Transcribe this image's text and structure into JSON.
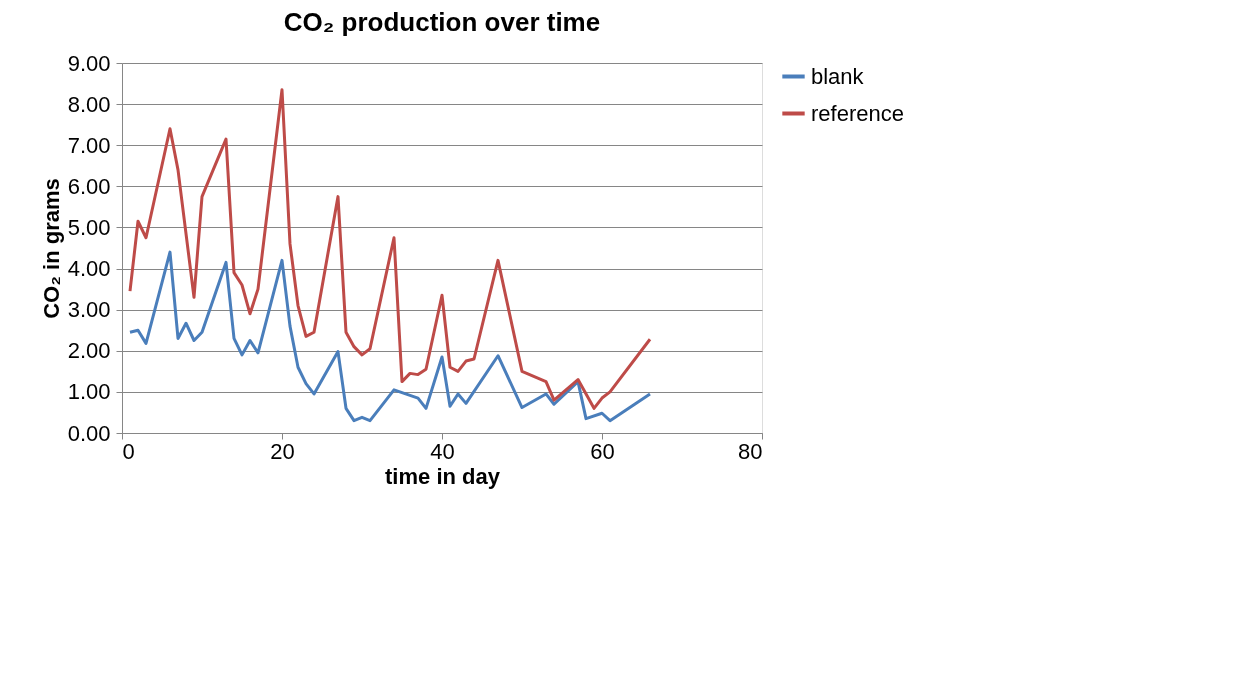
{
  "chart_data": {
    "type": "line",
    "title": "CO₂ production over time",
    "xlabel": "time in day",
    "ylabel": "CO₂ in grams",
    "xlim": [
      0,
      80
    ],
    "xticks": [
      0,
      20,
      40,
      60,
      80
    ],
    "ylim": [
      0,
      9
    ],
    "yticks": [
      {
        "value": 0,
        "label": "0.00"
      },
      {
        "value": 1,
        "label": "1.00"
      },
      {
        "value": 2,
        "label": "2.00"
      },
      {
        "value": 3,
        "label": "3.00"
      },
      {
        "value": 4,
        "label": "4.00"
      },
      {
        "value": 5,
        "label": "5.00"
      },
      {
        "value": 6,
        "label": "6.00"
      },
      {
        "value": 7,
        "label": "7.00"
      },
      {
        "value": 8,
        "label": "8.00"
      },
      {
        "value": 9,
        "label": "9.00"
      }
    ],
    "grid": "y",
    "legend": "right",
    "marker": "none",
    "line_style": "solid",
    "series": [
      {
        "name": "blank",
        "color": "#4a7ebb",
        "x": [
          1,
          2,
          3,
          6,
          7,
          8,
          9,
          10,
          13,
          14,
          15,
          16,
          17,
          20,
          21,
          22,
          23,
          24,
          27,
          28,
          29,
          30,
          31,
          34,
          37,
          38,
          40,
          41,
          42,
          43,
          47,
          50,
          53,
          54,
          57,
          58,
          60,
          61,
          66
        ],
        "values": [
          2.45,
          2.5,
          2.18,
          4.4,
          2.3,
          2.67,
          2.25,
          2.45,
          4.15,
          2.3,
          1.9,
          2.25,
          1.95,
          4.2,
          2.6,
          1.6,
          1.2,
          0.95,
          1.98,
          0.6,
          0.3,
          0.38,
          0.3,
          1.05,
          0.85,
          0.6,
          1.85,
          0.65,
          0.95,
          0.72,
          1.88,
          0.62,
          0.95,
          0.7,
          1.25,
          0.35,
          0.48,
          0.3,
          0.95
        ]
      },
      {
        "name": "reference",
        "color": "#be4b48",
        "x": [
          1,
          2,
          3,
          6,
          7,
          9,
          10,
          13,
          14,
          15,
          16,
          17,
          20,
          21,
          22,
          23,
          24,
          27,
          28,
          29,
          30,
          31,
          34,
          35,
          36,
          37,
          38,
          40,
          41,
          42,
          43,
          44,
          47,
          50,
          53,
          54,
          57,
          59,
          60,
          61,
          66
        ],
        "values": [
          3.45,
          5.15,
          4.75,
          7.4,
          6.4,
          3.3,
          5.75,
          7.15,
          3.9,
          3.6,
          2.9,
          3.5,
          8.35,
          4.6,
          3.1,
          2.35,
          2.45,
          5.75,
          2.45,
          2.1,
          1.9,
          2.05,
          4.75,
          1.25,
          1.45,
          1.42,
          1.55,
          3.35,
          1.6,
          1.5,
          1.75,
          1.8,
          4.2,
          1.5,
          1.25,
          0.8,
          1.3,
          0.6,
          0.85,
          1.0,
          2.28
        ]
      }
    ]
  }
}
